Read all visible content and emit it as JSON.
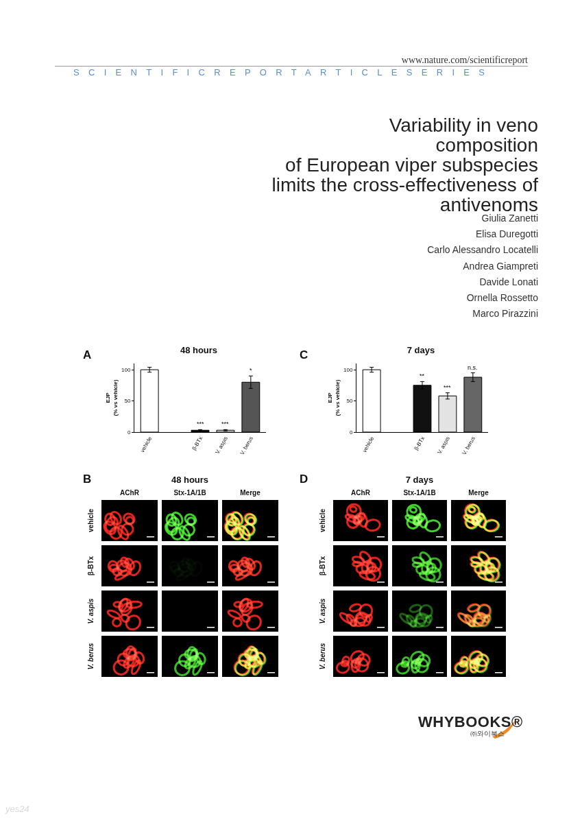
{
  "header": {
    "url": "www.nature.com/scientificreport",
    "series": "SCIENTIFICREPORTARTICLESERIES"
  },
  "title_lines": [
    "Variability in veno",
    "composition",
    "of European viper subspecies",
    "limits the cross-effectiveness of",
    "antivenoms"
  ],
  "authors": [
    "Giulia Zanetti",
    "Elisa Duregotti",
    "Carlo Alessandro Locatelli",
    "Andrea Giampreti",
    "Davide Lonati",
    "Ornella Rossetto",
    "Marco Pirazzini"
  ],
  "chart_panel_letters": [
    "A",
    "C"
  ],
  "chart_data": [
    {
      "type": "bar",
      "title": "48 hours",
      "y_label": "EJP\n(% vs vehicle)",
      "categories": [
        "vehicle",
        null,
        "β-BTx",
        "V. aspis",
        "V. berus"
      ],
      "values": [
        100,
        null,
        3,
        3,
        80
      ],
      "errors": [
        4,
        null,
        1,
        1,
        10
      ],
      "colors": [
        "#ffffff",
        null,
        "#111111",
        "#e3e3e3",
        "#555555"
      ],
      "ylim": [
        0,
        110
      ],
      "yticks": [
        0,
        50,
        100
      ],
      "annotations": [
        {
          "category": "β-BTx",
          "text": "***"
        },
        {
          "category": "V. aspis",
          "text": "***"
        },
        {
          "category": "V. berus",
          "text": "*"
        }
      ]
    },
    {
      "type": "bar",
      "title": "7 days",
      "y_label": "EJP\n(% vs vehicle)",
      "categories": [
        "vehicle",
        null,
        "β-BTx",
        "V. aspis",
        "V. berus"
      ],
      "values": [
        100,
        null,
        75,
        58,
        88
      ],
      "errors": [
        4,
        null,
        6,
        5,
        7
      ],
      "colors": [
        "#ffffff",
        null,
        "#111111",
        "#e3e3e3",
        "#666666"
      ],
      "ylim": [
        0,
        110
      ],
      "yticks": [
        0,
        50,
        100
      ],
      "annotations": [
        {
          "category": "β-BTx",
          "text": "**"
        },
        {
          "category": "V. aspis",
          "text": "***"
        },
        {
          "category": "V. berus",
          "text": "n.s."
        }
      ]
    }
  ],
  "image_panels": [
    {
      "letter": "B",
      "title": "48 hours",
      "columns": [
        "AChR",
        "Stx-1A/1B",
        "Merge"
      ],
      "rows": [
        "vehicle",
        "β-BTx",
        "V. aspis",
        "V. berus"
      ]
    },
    {
      "letter": "D",
      "title": "7 days",
      "columns": [
        "AChR",
        "Stx-1A/1B",
        "Merge"
      ],
      "rows": [
        "vehicle",
        "β-BTx",
        "V. aspis",
        "V. berus"
      ]
    }
  ],
  "publisher": {
    "name": "WHYBOOKS®",
    "korean": "㈜와이북스"
  },
  "watermark": "yes24"
}
